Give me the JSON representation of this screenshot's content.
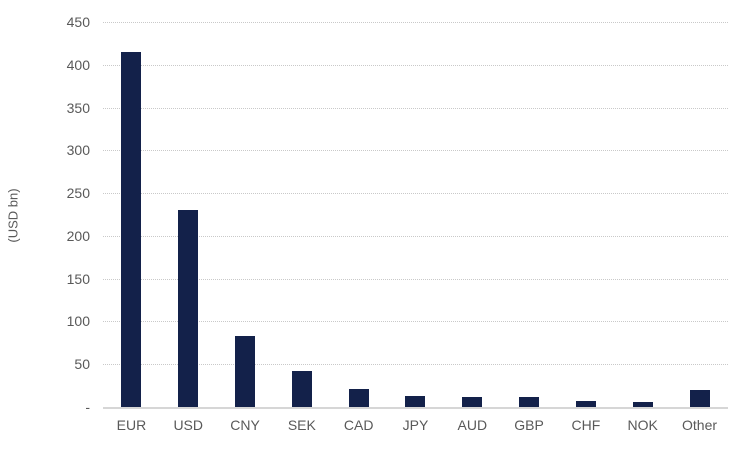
{
  "chart_data": {
    "type": "bar",
    "title": "",
    "xlabel": "",
    "ylabel": "(USD bn)",
    "categories": [
      "EUR",
      "USD",
      "CNY",
      "SEK",
      "CAD",
      "JPY",
      "AUD",
      "GBP",
      "CHF",
      "NOK",
      "Other"
    ],
    "values": [
      415,
      230,
      83,
      42,
      21,
      13,
      12,
      12,
      7,
      6,
      20
    ],
    "ylim": [
      0,
      450
    ],
    "ytick_interval": 50,
    "ytick_labels": [
      "-",
      "50",
      "100",
      "150",
      "200",
      "250",
      "300",
      "350",
      "400",
      "450"
    ],
    "zero_tick_label": "-",
    "grid": true,
    "legend": false,
    "colors": {
      "bar": "#13214a",
      "gridline": "#c9c9c9",
      "axis_line": "#d6d6d6",
      "tick_text": "#595959",
      "background": "#ffffff"
    }
  }
}
